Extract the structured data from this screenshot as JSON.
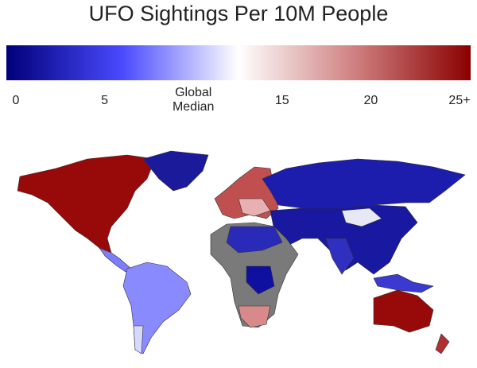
{
  "title": "UFO Sightings Per 10M People",
  "colorbar": {
    "clim": [
      0,
      25
    ],
    "ticks": [
      0,
      5,
      {
        "value": 10,
        "label": "Global Median"
      },
      15,
      20,
      {
        "value": 25,
        "label": "25+"
      }
    ],
    "colorscale": [
      "#00007a",
      "#4a4aff",
      "#ffffff",
      "#cf8080",
      "#8b0000"
    ]
  }
}
